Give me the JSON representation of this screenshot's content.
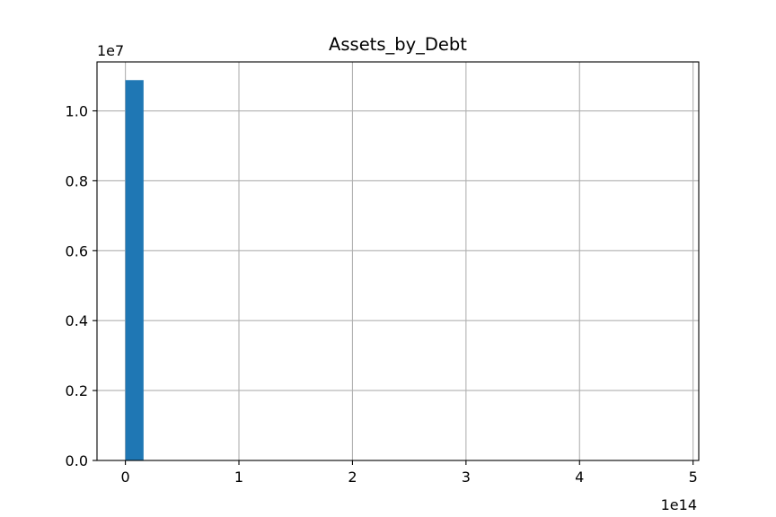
{
  "chart_data": {
    "type": "bar",
    "title": "Assets_by_Debt",
    "xlabel": "",
    "ylabel": "",
    "x_offset_label": "1e14",
    "y_offset_label": "1e7",
    "x_scale": 100000000000000.0,
    "y_scale": 10000000.0,
    "xlim": [
      -0.25,
      5.05
    ],
    "ylim": [
      0.0,
      1.14
    ],
    "x_ticks": [
      0,
      1,
      2,
      3,
      4,
      5
    ],
    "x_tick_labels": [
      "0",
      "1",
      "2",
      "3",
      "4",
      "5"
    ],
    "y_ticks": [
      0.0,
      0.2,
      0.4,
      0.6,
      0.8,
      1.0
    ],
    "y_tick_labels": [
      "0.0",
      "0.2",
      "0.4",
      "0.6",
      "0.8",
      "1.0"
    ],
    "grid": true,
    "bar_color": "#1f77b4",
    "bins": [
      {
        "x_start": 0.0,
        "x_end": 0.16,
        "count": 1.088
      }
    ]
  }
}
